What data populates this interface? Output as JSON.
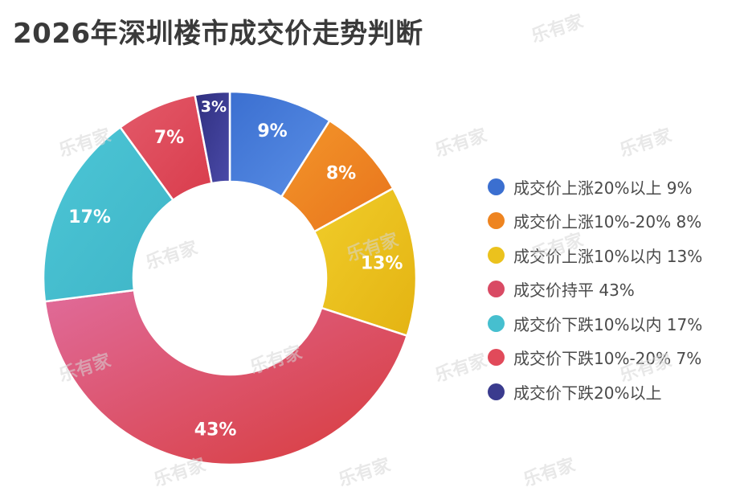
{
  "title": "2026年深圳楼市成交价走势判断",
  "watermark_text": "乐有家",
  "chart_data": {
    "type": "pie",
    "variant": "donut",
    "title": "2026年深圳楼市成交价走势判断",
    "legend_position": "right",
    "categories": [
      "成交价上涨20%以上",
      "成交价上涨10%-20%",
      "成交价上涨10%以内",
      "成交价持平",
      "成交价下跌10%以内",
      "成交价下跌10%-20%",
      "成交价下跌20%以上"
    ],
    "values": [
      9,
      8,
      13,
      43,
      17,
      7,
      3
    ],
    "slice_labels": [
      "9%",
      "8%",
      "13%",
      "43%",
      "17%",
      "7%",
      "3%"
    ],
    "legend_labels": [
      "成交价上涨20%以上 9%",
      "成交价上涨10%-20% 8%",
      "成交价上涨10%以内 13%",
      "成交价持平 43%",
      "成交价下跌10%以内 17%",
      "成交价下跌10%-20% 7%",
      "成交价下跌20%以上"
    ],
    "colors": [
      "#3b6fd0",
      "#ee8420",
      "#ebc21d",
      "#d94a64",
      "#46bfcf",
      "#e14a5a",
      "#3a3b8e"
    ],
    "gradients": [
      [
        "#3b6fd0",
        "#5a8fe6"
      ],
      [
        "#f3962a",
        "#e8731c"
      ],
      [
        "#f0cd2a",
        "#e4b312"
      ],
      [
        "#e06b9a",
        "#d83b3b"
      ],
      [
        "#4cc6d6",
        "#3fb5c7"
      ],
      [
        "#e35a6a",
        "#d93c4c"
      ],
      [
        "#2f2f7f",
        "#4a4aa8"
      ]
    ]
  }
}
